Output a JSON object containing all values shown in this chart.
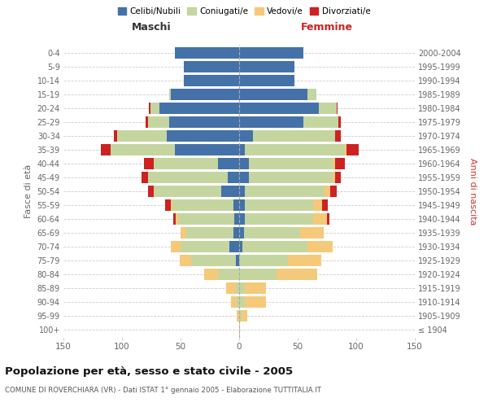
{
  "age_groups": [
    "100+",
    "95-99",
    "90-94",
    "85-89",
    "80-84",
    "75-79",
    "70-74",
    "65-69",
    "60-64",
    "55-59",
    "50-54",
    "45-49",
    "40-44",
    "35-39",
    "30-34",
    "25-29",
    "20-24",
    "15-19",
    "10-14",
    "5-9",
    "0-4"
  ],
  "birth_years": [
    "≤ 1904",
    "1905-1909",
    "1910-1914",
    "1915-1919",
    "1920-1924",
    "1925-1929",
    "1930-1934",
    "1935-1939",
    "1940-1944",
    "1945-1949",
    "1950-1954",
    "1955-1959",
    "1960-1964",
    "1965-1969",
    "1970-1974",
    "1975-1979",
    "1980-1984",
    "1985-1989",
    "1990-1994",
    "1995-1999",
    "2000-2004"
  ],
  "colors": {
    "celibe": "#4472a8",
    "coniugato": "#c5d5a0",
    "vedovo": "#f5c97a",
    "divorziato": "#cc2222"
  },
  "maschi": {
    "celibe": [
      0,
      0,
      0,
      0,
      0,
      3,
      8,
      5,
      4,
      5,
      15,
      10,
      18,
      55,
      62,
      60,
      68,
      58,
      47,
      47,
      55
    ],
    "coniugato": [
      0,
      0,
      2,
      3,
      18,
      38,
      42,
      40,
      48,
      52,
      58,
      68,
      55,
      55,
      42,
      18,
      8,
      2,
      0,
      0,
      0
    ],
    "vedovo": [
      0,
      2,
      5,
      8,
      12,
      10,
      8,
      5,
      2,
      1,
      0,
      0,
      0,
      0,
      0,
      0,
      0,
      0,
      0,
      0,
      0
    ],
    "divorziato": [
      0,
      0,
      0,
      0,
      0,
      0,
      0,
      0,
      2,
      5,
      5,
      5,
      8,
      8,
      3,
      2,
      1,
      0,
      0,
      0,
      0
    ]
  },
  "femmine": {
    "nubile": [
      0,
      0,
      0,
      0,
      0,
      0,
      3,
      4,
      5,
      5,
      5,
      8,
      8,
      5,
      12,
      55,
      68,
      58,
      47,
      47,
      55
    ],
    "coniugata": [
      0,
      2,
      5,
      5,
      32,
      42,
      55,
      48,
      58,
      58,
      68,
      72,
      72,
      85,
      70,
      30,
      15,
      8,
      0,
      0,
      0
    ],
    "vedova": [
      1,
      5,
      18,
      18,
      35,
      28,
      22,
      20,
      12,
      8,
      5,
      2,
      2,
      2,
      0,
      0,
      0,
      0,
      0,
      0,
      0
    ],
    "divorziata": [
      0,
      0,
      0,
      0,
      0,
      0,
      0,
      0,
      2,
      5,
      5,
      5,
      8,
      10,
      5,
      2,
      1,
      0,
      0,
      0,
      0
    ]
  },
  "xlim": 150,
  "title": "Popolazione per età, sesso e stato civile - 2005",
  "subtitle": "COMUNE DI ROVERCHIARA (VR) - Dati ISTAT 1° gennaio 2005 - Elaborazione TUTTITALIA.IT",
  "ylabel_left": "Fasce di età",
  "ylabel_right": "Anni di nascita",
  "xlabel_maschi": "Maschi",
  "xlabel_femmine": "Femmine",
  "bar_height": 0.85
}
